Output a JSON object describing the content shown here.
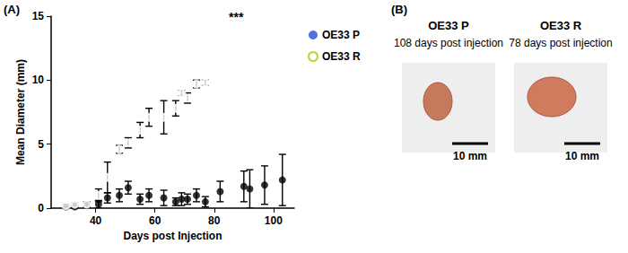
{
  "chart_data": {
    "type": "scatter",
    "panel_label": "(A)",
    "x_label": "Days post Injection",
    "y_label": "Mean Diameter (mm)",
    "xlim": [
      25,
      107
    ],
    "xticks": [
      40,
      60,
      80,
      100
    ],
    "ylim": [
      0,
      15
    ],
    "yticks": [
      0,
      5,
      10,
      15
    ],
    "grid": false,
    "legend": "right",
    "annotation": "***",
    "series": [
      {
        "name": "OE33 P",
        "color": "#000000",
        "marker": "filled_circle",
        "x": [
          30,
          33,
          37,
          41,
          44,
          48,
          51,
          55,
          58,
          63,
          67,
          69,
          71,
          74,
          77,
          82,
          90,
          92,
          97,
          103
        ],
        "values": [
          0.1,
          0.1,
          0.2,
          0.3,
          0.8,
          1.0,
          1.6,
          0.7,
          1.0,
          0.8,
          0.5,
          0.7,
          0.7,
          1.0,
          0.5,
          1.3,
          1.7,
          1.5,
          1.8,
          2.2
        ],
        "errors": [
          0.1,
          0.1,
          0.2,
          0.3,
          0.4,
          0.5,
          0.5,
          0.4,
          0.5,
          0.6,
          0.3,
          0.5,
          0.4,
          0.5,
          0.4,
          0.8,
          1.2,
          1.5,
          1.5,
          2.0
        ]
      },
      {
        "name": "OE33 R",
        "color": "#000000",
        "marker": "open_circle",
        "x": [
          30,
          33,
          37,
          41,
          44,
          48,
          51,
          55,
          58,
          63,
          67,
          69,
          71,
          74,
          77
        ],
        "values": [
          0.2,
          0.3,
          0.3,
          1.0,
          2.4,
          4.6,
          5.1,
          6.1,
          7.1,
          7.1,
          7.8,
          9.0,
          8.6,
          9.7,
          9.8
        ],
        "errors": [
          0.1,
          0.1,
          0.2,
          0.5,
          1.2,
          0.3,
          0.4,
          0.6,
          0.7,
          1.3,
          0.6,
          0.2,
          0.4,
          0.3,
          0.2
        ]
      }
    ]
  },
  "panel_b": {
    "label": "(B)",
    "images": [
      {
        "title": "OE33 P",
        "caption": "108 days post injection",
        "scale_bar": "10 mm"
      },
      {
        "title": "OE33 R",
        "caption": "78 days post injection",
        "scale_bar": "10 mm"
      }
    ]
  }
}
